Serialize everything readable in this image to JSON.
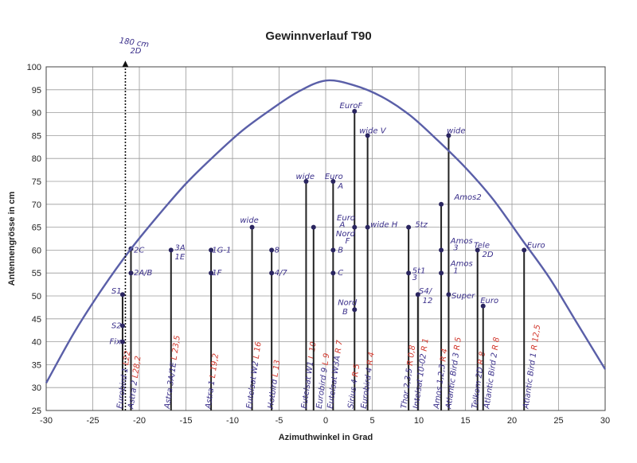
{
  "chart_data": {
    "type": "line",
    "title": "Gewinnverlauf T90",
    "xlabel": "Azimuthwinkel in Grad",
    "ylabel": "Antennengrösse in cm",
    "xlim": [
      -30,
      30
    ],
    "ylim": [
      25,
      100
    ],
    "xticks": [
      -30,
      -25,
      -20,
      -15,
      -10,
      -5,
      0,
      5,
      10,
      15,
      20,
      25,
      30
    ],
    "yticks": [
      25,
      30,
      35,
      40,
      45,
      50,
      55,
      60,
      65,
      70,
      75,
      80,
      85,
      90,
      95,
      100
    ],
    "grid": true,
    "curve": {
      "x": [
        -30,
        -27,
        -24,
        -21,
        -18,
        -15,
        -12,
        -9,
        -6,
        -3,
        0,
        3,
        6,
        9,
        12,
        15,
        18,
        21,
        24,
        27,
        30
      ],
      "y": [
        31,
        42,
        51.5,
        60,
        67.5,
        74.5,
        80.5,
        86,
        90.5,
        94.5,
        97,
        96,
        93.5,
        89.5,
        84,
        78,
        71,
        62.5,
        54,
        44,
        34
      ],
      "color": "#5a5fa8"
    },
    "arrow": {
      "x": -21.5,
      "from": 25,
      "to": 101,
      "label": "180 cm 2D"
    },
    "annotations_top": [
      {
        "text": "2C",
        "x": -20.6,
        "y": 60
      },
      {
        "text": "2A/B",
        "x": -20.6,
        "y": 55
      },
      {
        "text": "S1",
        "x": -23.0,
        "y": 51
      },
      {
        "text": "S2",
        "x": -23.0,
        "y": 43.5
      },
      {
        "text": "Fix",
        "x": -23.2,
        "y": 40
      },
      {
        "text": "3A",
        "x": -16.2,
        "y": 60.5
      },
      {
        "text": "1E",
        "x": -16.2,
        "y": 58.5
      },
      {
        "text": "1G-1",
        "x": -12.2,
        "y": 60
      },
      {
        "text": "1F",
        "x": -12.2,
        "y": 55
      },
      {
        "text": "wide",
        "x": -9.2,
        "y": 66.5
      },
      {
        "text": "8",
        "x": -5.5,
        "y": 60
      },
      {
        "text": "4/7",
        "x": -5.5,
        "y": 55
      },
      {
        "text": "wide",
        "x": -3.2,
        "y": 76
      },
      {
        "text": "Euro",
        "x": -0.1,
        "y": 76
      },
      {
        "text": "A",
        "x": 1.3,
        "y": 74
      },
      {
        "text": "B",
        "x": 1.3,
        "y": 60
      },
      {
        "text": "C",
        "x": 1.3,
        "y": 55
      },
      {
        "text": "EuroF",
        "x": 1.5,
        "y": 91.5
      },
      {
        "text": "wide V",
        "x": 3.6,
        "y": 86
      },
      {
        "text": "Euro",
        "x": 1.2,
        "y": 67
      },
      {
        "text": "A",
        "x": 1.5,
        "y": 65.5
      },
      {
        "text": "Nord",
        "x": 1.1,
        "y": 63.5
      },
      {
        "text": "F",
        "x": 2.1,
        "y": 62
      },
      {
        "text": "wide H",
        "x": 4.8,
        "y": 65.5
      },
      {
        "text": "Nord",
        "x": 1.3,
        "y": 48.5
      },
      {
        "text": "B",
        "x": 1.8,
        "y": 46.5
      },
      {
        "text": "5tz",
        "x": 9.6,
        "y": 65.5
      },
      {
        "text": "5t1",
        "x": 9.3,
        "y": 55.5
      },
      {
        "text": "3",
        "x": 9.3,
        "y": 54
      },
      {
        "text": "S4/",
        "x": 10.0,
        "y": 51
      },
      {
        "text": "12",
        "x": 10.4,
        "y": 49
      },
      {
        "text": "Amos2",
        "x": 13.8,
        "y": 71.5
      },
      {
        "text": "wide",
        "x": 13.0,
        "y": 86
      },
      {
        "text": "Amos",
        "x": 13.4,
        "y": 62
      },
      {
        "text": "3",
        "x": 13.7,
        "y": 60.5
      },
      {
        "text": "Amos",
        "x": 13.4,
        "y": 57
      },
      {
        "text": "1",
        "x": 13.7,
        "y": 55.5
      },
      {
        "text": "Super",
        "x": 13.5,
        "y": 50
      },
      {
        "text": "Tele",
        "x": 15.9,
        "y": 61
      },
      {
        "text": "2D",
        "x": 16.8,
        "y": 59
      },
      {
        "text": "Euro",
        "x": 16.6,
        "y": 49
      },
      {
        "text": "Euro",
        "x": 21.6,
        "y": 61
      }
    ],
    "satellites": [
      {
        "x": -21.8,
        "points": [
          40,
          43.5,
          50.3
        ],
        "label": "Eurobird 1",
        "pos": "L22",
        "name_x": -22.2
      },
      {
        "x": -20.9,
        "points": [
          55,
          60.3
        ],
        "label": "Astra 2",
        "pos": "L28,2",
        "name_x": -21.0
      },
      {
        "x": -16.6,
        "points": [
          60
        ],
        "label": "Astra 3A/1E",
        "pos": "L 23,5",
        "name_x": -17.1
      },
      {
        "x": -12.3,
        "points": [
          55,
          60
        ],
        "label": "Astra 1",
        "pos": "L 19,2",
        "name_x": -12.7
      },
      {
        "x": -7.9,
        "points": [
          65
        ],
        "label": "Eutelsat W2",
        "pos": "L 16",
        "name_x": -8.3
      },
      {
        "x": -5.8,
        "points": [
          55,
          60
        ],
        "label": "Hotbird",
        "pos": "L 13",
        "name_x": -6.0
      },
      {
        "x": -2.1,
        "points": [
          75
        ],
        "label": "Eutelsat W1",
        "pos": "L 10",
        "name_x": -2.4
      },
      {
        "x": -1.3,
        "points": [
          65
        ],
        "label": "Eurobird 9",
        "pos": "L 9",
        "name_x": -0.8
      },
      {
        "x": 0.8,
        "points": [
          55,
          60,
          75
        ],
        "label": "Eutelsat W3A",
        "pos": "R 7",
        "name_x": 0.4
      },
      {
        "x": 3.1,
        "points": [
          47,
          65,
          90.3
        ],
        "label": "Sirius 4",
        "pos": "R 5",
        "name_x": 2.6
      },
      {
        "x": 4.5,
        "points": [
          65,
          85
        ],
        "label": "Eurobird 4",
        "pos": "R 4",
        "name_x": 4.0
      },
      {
        "x": 8.9,
        "points": [
          55,
          65
        ],
        "label": "Thor 2,3,5",
        "pos": "R 0,8",
        "name_x": 8.3
      },
      {
        "x": 9.9,
        "points": [
          50.3
        ],
        "label": "Intelsat 10-02",
        "pos": "R 1",
        "name_x": 9.6
      },
      {
        "x": 12.4,
        "points": [
          55,
          60,
          70
        ],
        "label": "Amos 1,2,3",
        "pos": "R 4",
        "name_x": 11.8
      },
      {
        "x": 13.2,
        "points": [
          50.3,
          85
        ],
        "label": "Atlantic Bird 3",
        "pos": "R 5",
        "name_x": 13.1
      },
      {
        "x": 16.3,
        "points": [
          60
        ],
        "label": "Telkom 2D",
        "pos": "R 8",
        "name_x": 15.9
      },
      {
        "x": 16.9,
        "points": [
          47.8
        ],
        "label": "Atlantic Bird 2",
        "pos": "R 8",
        "name_x": 17.2
      },
      {
        "x": 21.3,
        "points": [
          60
        ],
        "label": "Atlantic Bird 1",
        "pos": "R 12,5",
        "name_x": 21.4
      }
    ]
  }
}
